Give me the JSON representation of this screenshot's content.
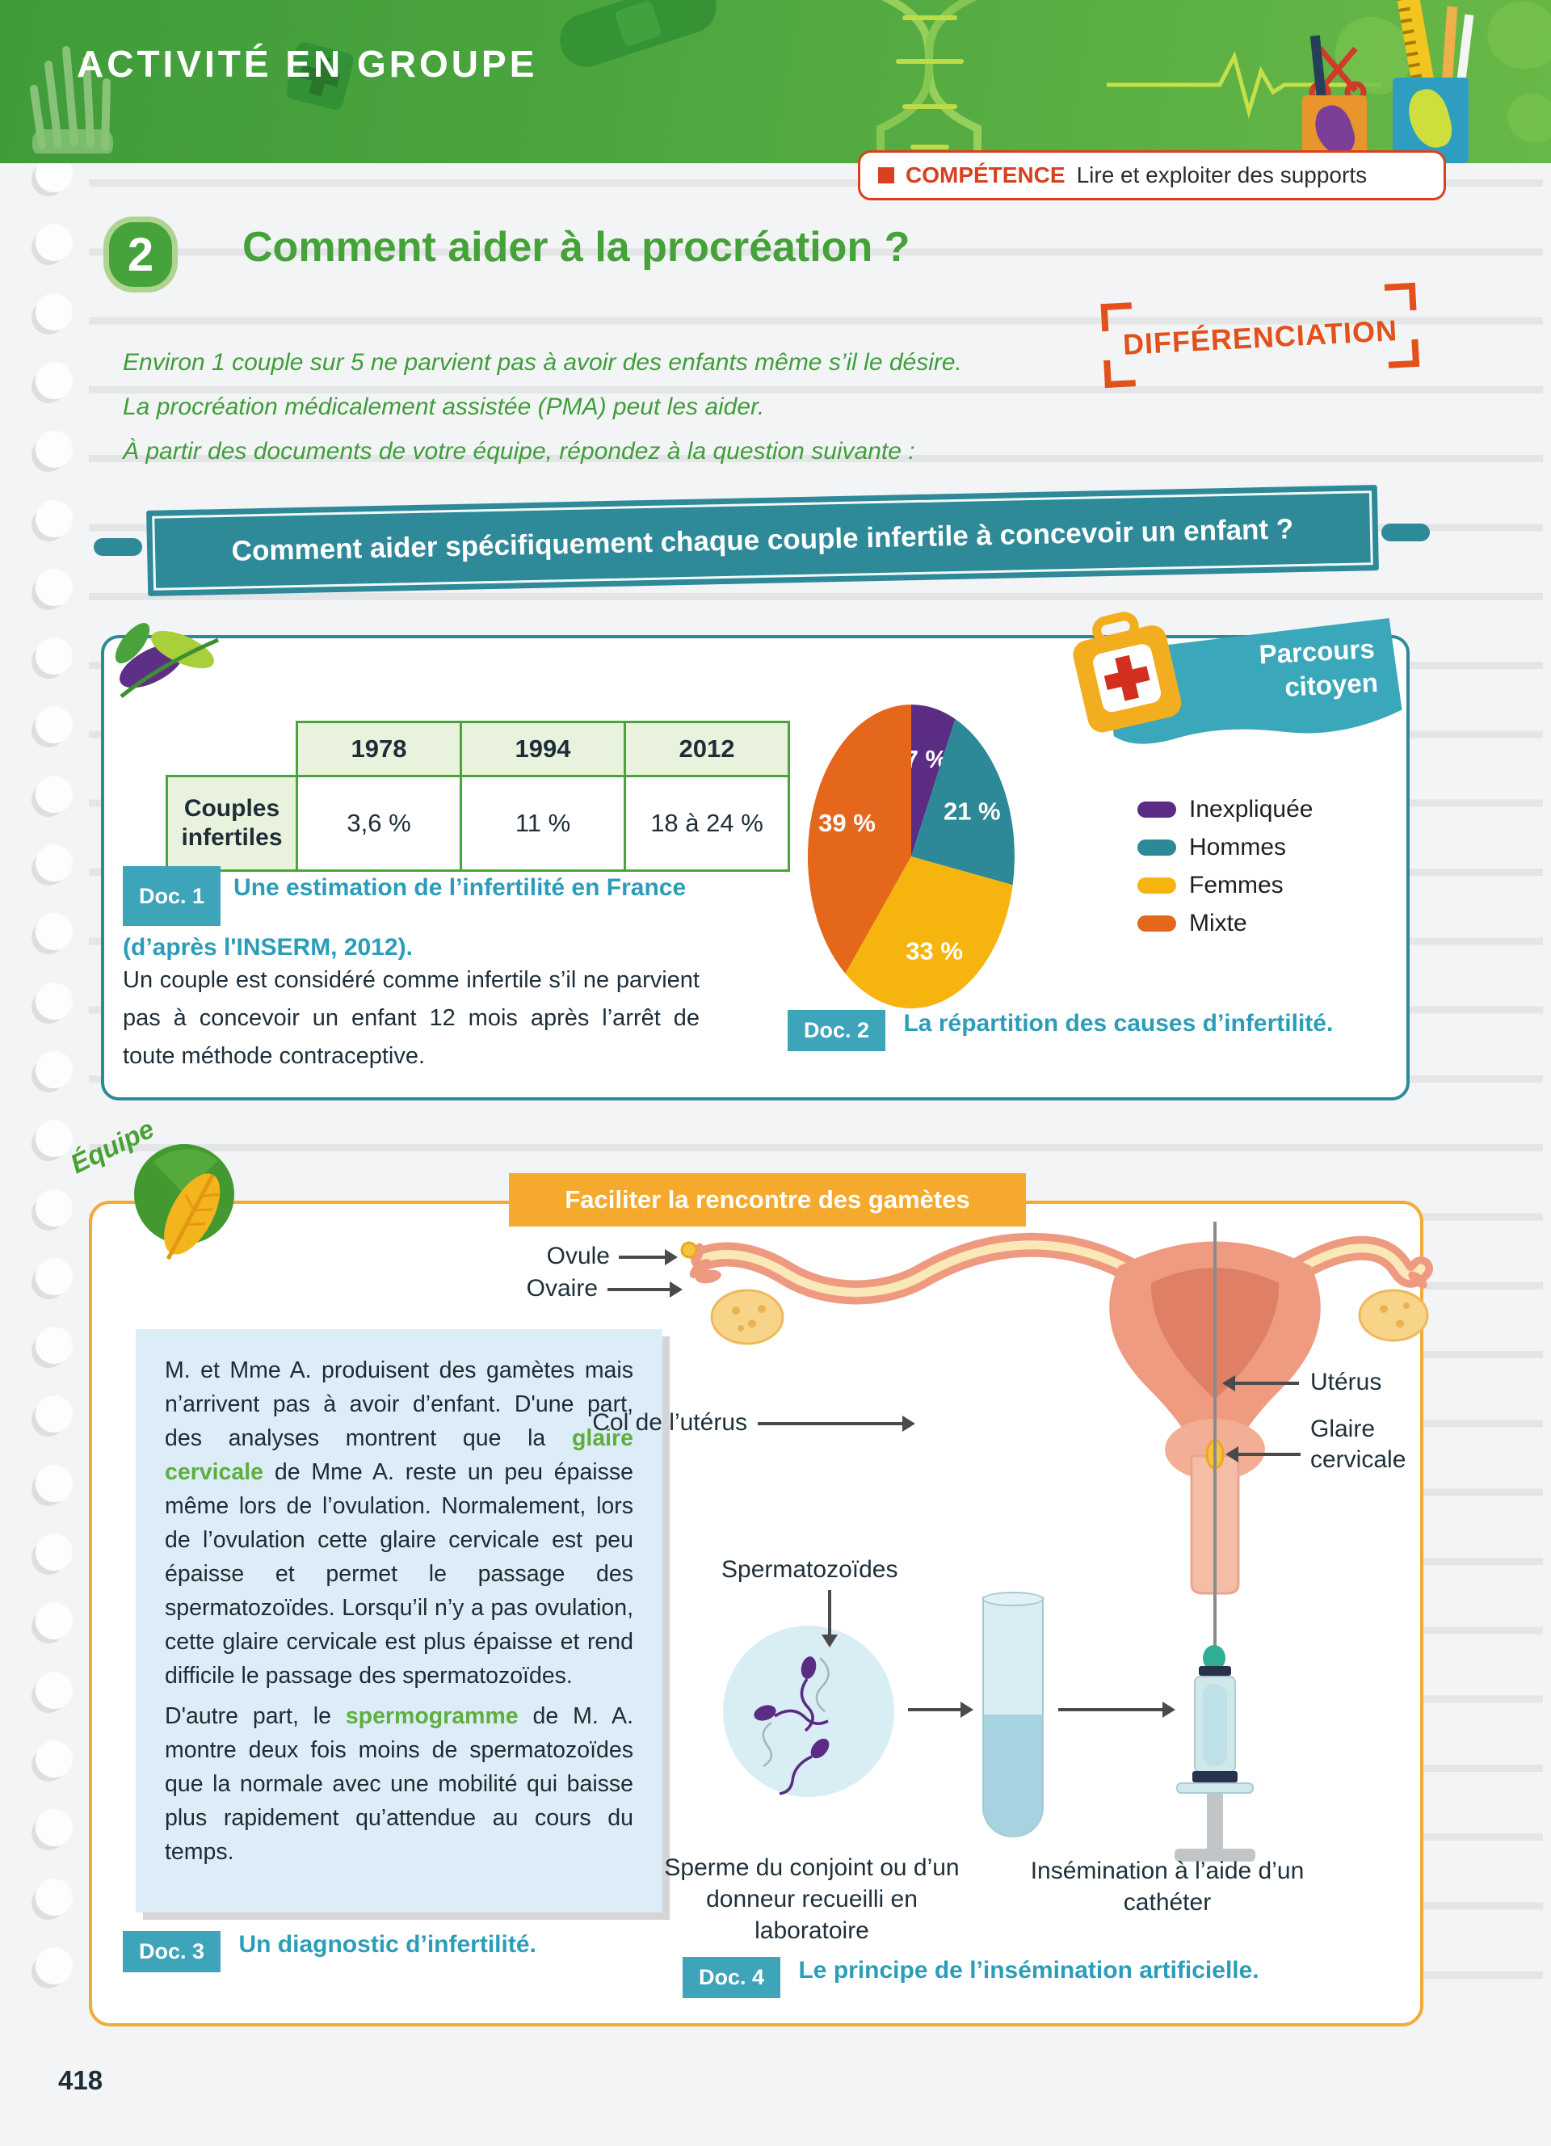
{
  "page": {
    "number": "418"
  },
  "header": {
    "banner_title": "ACTIVITÉ EN GROUPE"
  },
  "competence": {
    "label": "COMPÉTENCE",
    "text": "Lire et exploiter des supports"
  },
  "activity": {
    "number": "2",
    "title": "Comment aider à la procréation ?"
  },
  "intro": {
    "lines": [
      "Environ 1 couple sur 5 ne parvient pas à avoir des enfants même s’il le désire.",
      "La procréation médicalement assistée (PMA) peut les aider.",
      "À partir des documents de votre équipe, répondez à la question suivante :"
    ]
  },
  "stamp": {
    "text": "DIFFÉRENCIATION"
  },
  "question_banner": {
    "text": "Comment aider spécifiquement chaque couple infertile à concevoir un enfant ?"
  },
  "parcours_ribbon": {
    "line1": "Parcours",
    "line2": "citoyen"
  },
  "doc1": {
    "badge": "Doc. 1",
    "caption": "Une estimation de l’infertilité en France (d’après l'INSERM, 2012).",
    "table": {
      "col_headers": [
        "1978",
        "1994",
        "2012"
      ],
      "row_label": "Couples infertiles",
      "values": [
        "3,6 %",
        "11 %",
        "18 à 24 %"
      ]
    },
    "paragraph": "Un couple est considéré comme infertile s’il ne parvient pas à concevoir un enfant 12 mois après l’arrêt de toute méthode contraceptive."
  },
  "doc2": {
    "badge": "Doc. 2",
    "caption": "La répartition des causes d’infertilité."
  },
  "chart_data": {
    "type": "pie",
    "title": "La répartition des causes d’infertilité.",
    "labels": [
      "Inexpliquée",
      "Hommes",
      "Femmes",
      "Mixte"
    ],
    "values": [
      7,
      21,
      33,
      39
    ],
    "value_labels": [
      "7 %",
      "21 %",
      "33 %",
      "39 %"
    ],
    "colors": [
      "#5b2c83",
      "#2d8997",
      "#f6b40e",
      "#e5671c"
    ],
    "start_angle_deg": -90,
    "direction": "clockwise",
    "legend_position": "right"
  },
  "equipe": {
    "label": "Équipe"
  },
  "team_banner": {
    "text": "Faciliter la rencontre des gamètes"
  },
  "doc3": {
    "badge": "Doc. 3",
    "caption": "Un diagnostic d’infertilité.",
    "p1_before": "M. et Mme A. produisent des gamètes mais n’arrivent pas à avoir d’enfant. D'une part, des analyses montrent que la ",
    "p1_keyword": "glaire cervicale",
    "p1_after": " de Mme A. reste un peu épaisse même lors de l’ovulation. Normalement, lors de l’ovulation cette glaire cervicale est peu épaisse et permet le passage des spermatozoïdes. Lorsqu’il n’y a pas ovulation, cette glaire cervicale est plus épaisse et rend difficile le passage des spermatozoïdes.",
    "p2_before": "D'autre part, le ",
    "p2_keyword": "spermogramme",
    "p2_after": " de M. A. montre deux fois moins de spermatozoïdes que la normale avec une mobilité qui baisse plus rapidement qu’attendue au cours du temps."
  },
  "doc4": {
    "badge": "Doc. 4",
    "caption": "Le principe de l’insémination artificielle."
  },
  "diagram": {
    "labels": {
      "ovule": "Ovule",
      "ovaire": "Ovaire",
      "uterus": "Utérus",
      "col_uterus": "Col de l’utérus",
      "glaire_l1": "Glaire",
      "glaire_l2": "cervicale",
      "spermatozoides": "Spermatozoïdes"
    },
    "caption_left": "Sperme du conjoint ou d’un donneur recueilli en laboratoire",
    "caption_right": "Insémination à l’aide d’un cathéter"
  }
}
